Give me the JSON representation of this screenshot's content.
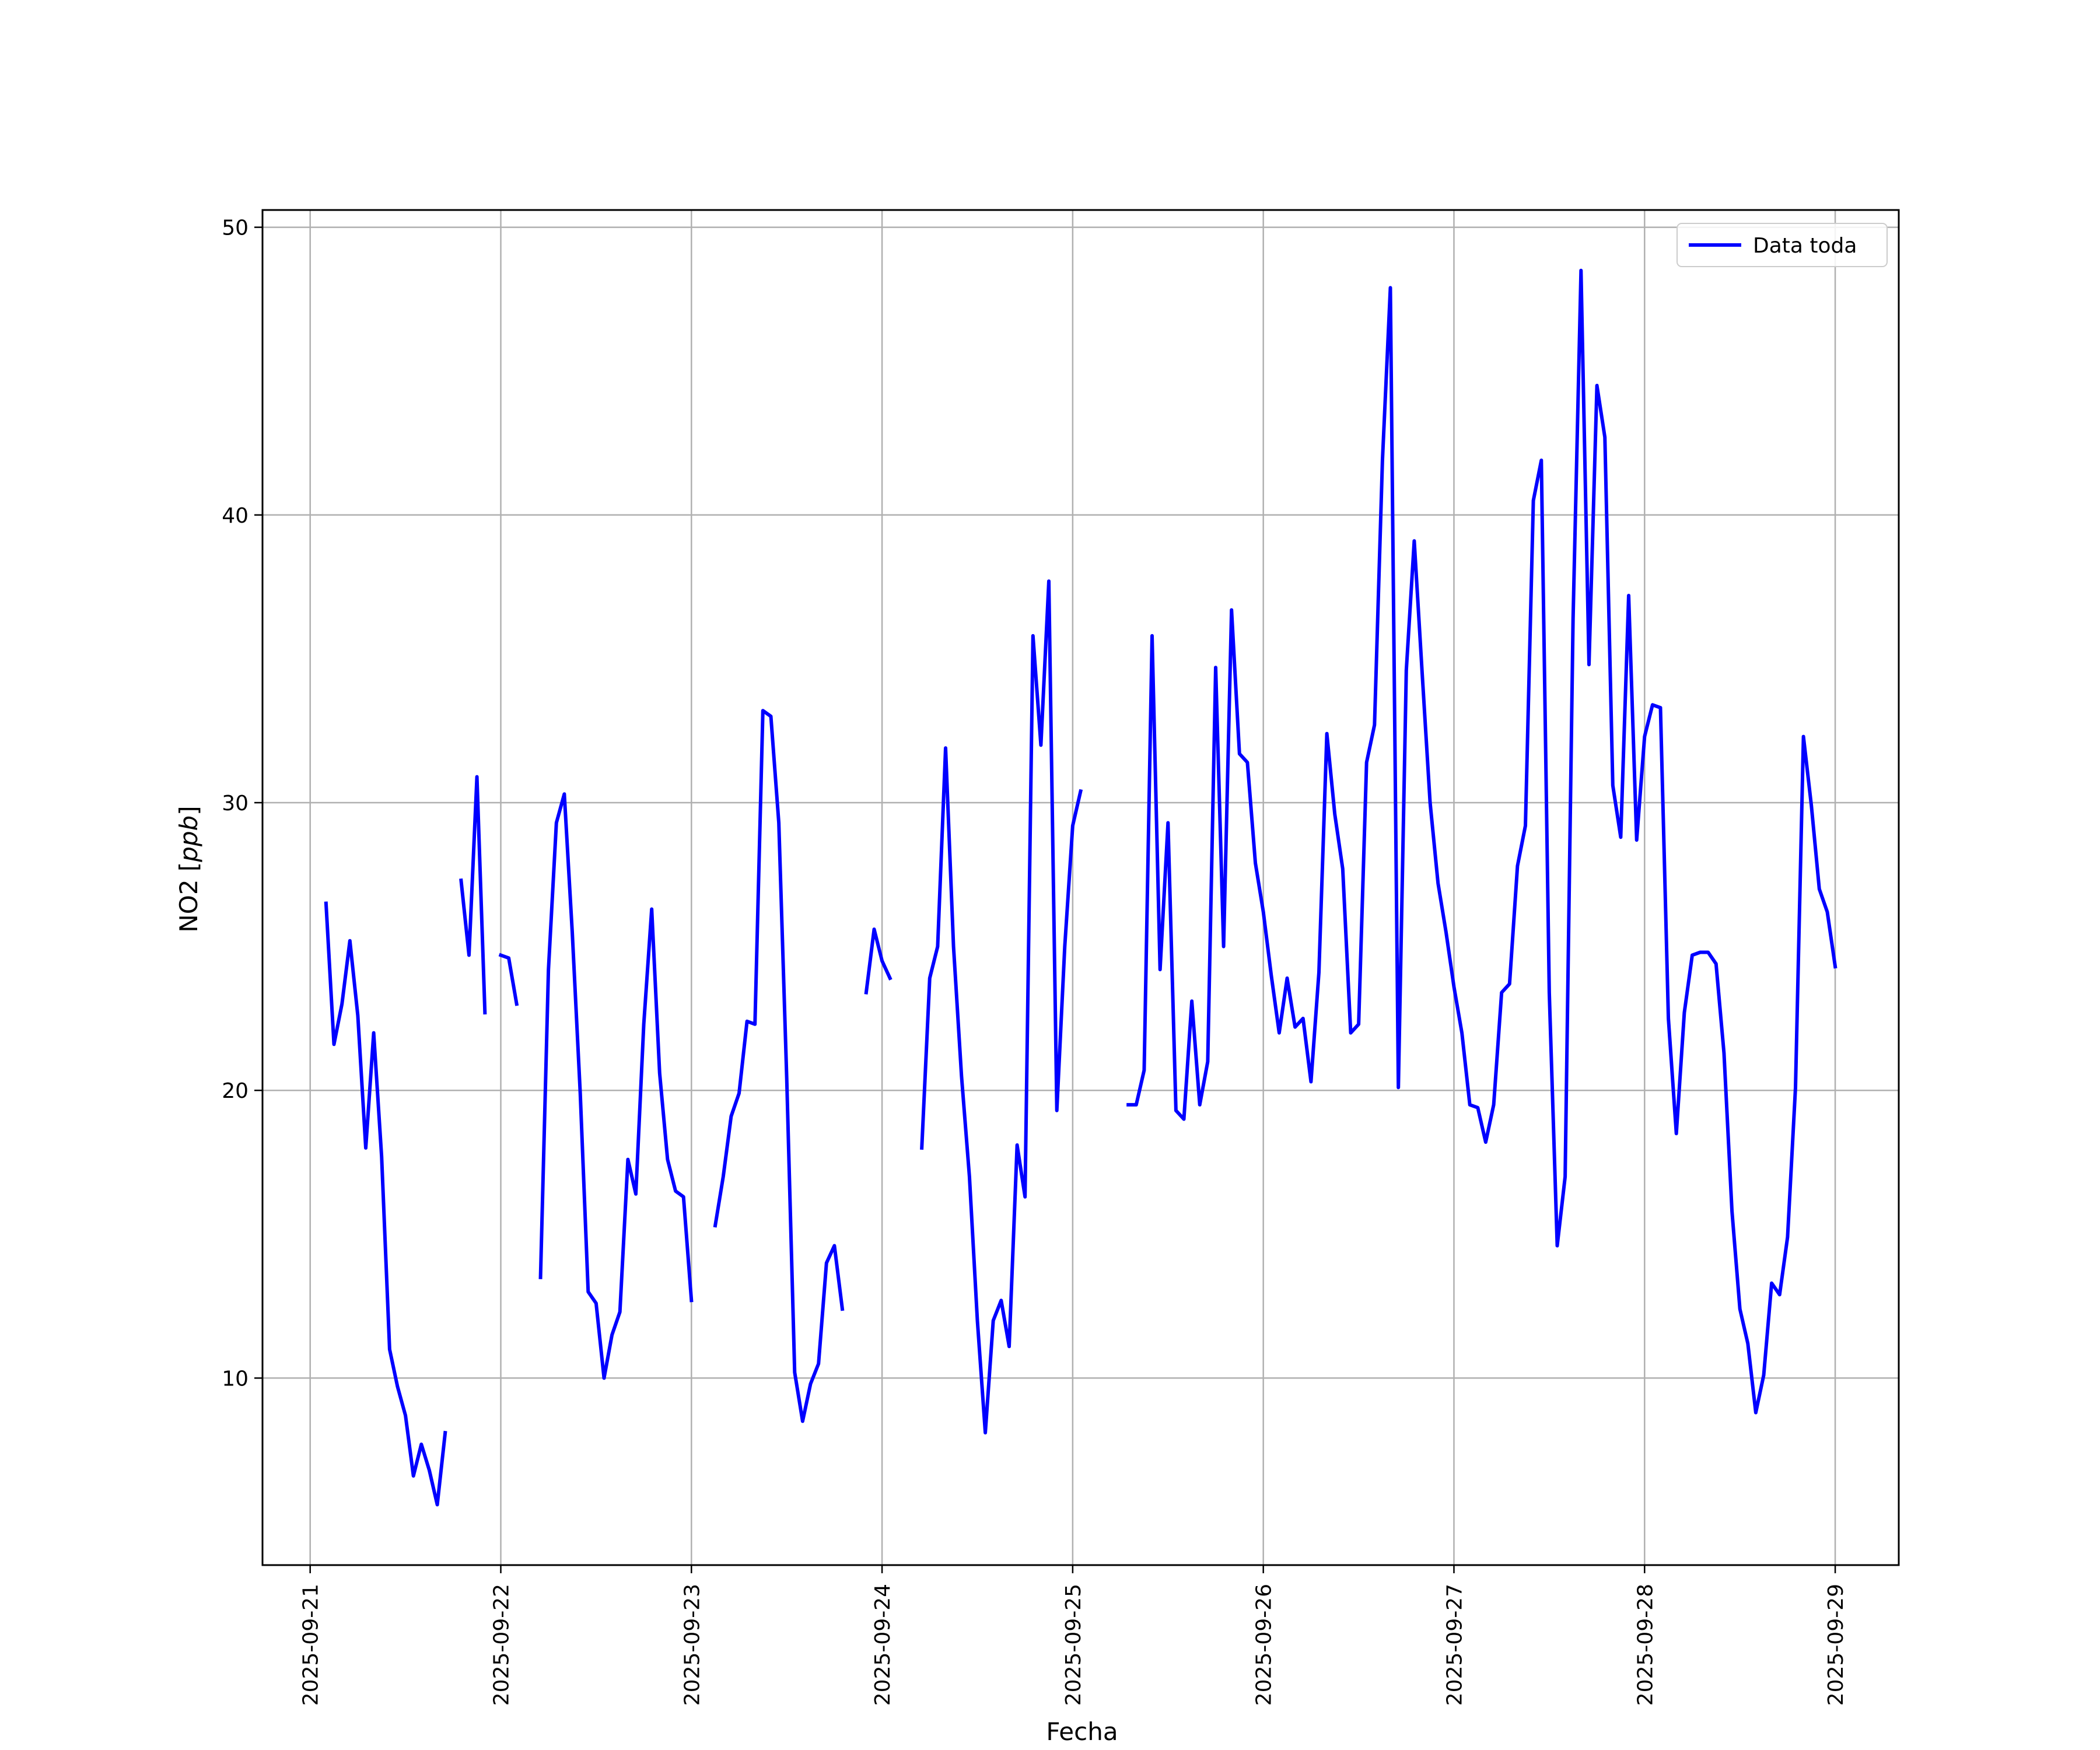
{
  "chart_data": {
    "type": "line",
    "title": "",
    "xlabel": "Fecha",
    "ylabel": "NO2 [ppb]",
    "ylabel_base": "NO2 [",
    "ylabel_unit": "ppb",
    "ylabel_close": "]",
    "xlim": [
      "2025-09-20T18:00",
      "2025-09-29T08:00"
    ],
    "ylim": [
      3.5,
      50.6
    ],
    "xticks": [
      "2025-09-21",
      "2025-09-22",
      "2025-09-23",
      "2025-09-24",
      "2025-09-25",
      "2025-09-26",
      "2025-09-27",
      "2025-09-28",
      "2025-09-29"
    ],
    "yticks": [
      10,
      20,
      30,
      40,
      50
    ],
    "grid": true,
    "legend_position": "top-right",
    "colors": {
      "series": "#0000ff",
      "grid": "#b0b0b0",
      "frame": "#000000"
    },
    "series": [
      {
        "name": "Data toda",
        "segments": [
          [
            [
              "2025-09-21T02:00",
              26.5
            ],
            [
              "2025-09-21T03:00",
              21.6
            ],
            [
              "2025-09-21T04:00",
              23.0
            ],
            [
              "2025-09-21T05:00",
              25.2
            ],
            [
              "2025-09-21T06:00",
              22.6
            ],
            [
              "2025-09-21T07:00",
              18.0
            ],
            [
              "2025-09-21T08:00",
              22.0
            ],
            [
              "2025-09-21T09:00",
              17.7
            ],
            [
              "2025-09-21T10:00",
              11.0
            ],
            [
              "2025-09-21T11:00",
              9.7
            ],
            [
              "2025-09-21T12:00",
              8.7
            ],
            [
              "2025-09-21T13:00",
              6.6
            ],
            [
              "2025-09-21T14:00",
              7.7
            ],
            [
              "2025-09-21T15:00",
              6.8
            ],
            [
              "2025-09-21T16:00",
              5.6
            ],
            [
              "2025-09-21T17:00",
              8.1
            ]
          ],
          [
            [
              "2025-09-21T19:00",
              27.3
            ],
            [
              "2025-09-21T20:00",
              24.7
            ],
            [
              "2025-09-21T21:00",
              30.9
            ],
            [
              "2025-09-21T22:00",
              22.7
            ]
          ],
          [
            [
              "2025-09-22T00:00",
              24.7
            ],
            [
              "2025-09-22T01:00",
              24.6
            ],
            [
              "2025-09-22T02:00",
              23.0
            ]
          ],
          [
            [
              "2025-09-22T05:00",
              13.5
            ],
            [
              "2025-09-22T06:00",
              24.2
            ],
            [
              "2025-09-22T07:00",
              29.3
            ],
            [
              "2025-09-22T08:00",
              30.3
            ],
            [
              "2025-09-22T09:00",
              25.5
            ],
            [
              "2025-09-22T10:00",
              19.9
            ],
            [
              "2025-09-22T11:00",
              13.0
            ],
            [
              "2025-09-22T12:00",
              12.6
            ],
            [
              "2025-09-22T13:00",
              10.0
            ],
            [
              "2025-09-22T14:00",
              11.5
            ],
            [
              "2025-09-22T15:00",
              12.3
            ],
            [
              "2025-09-22T16:00",
              17.6
            ],
            [
              "2025-09-22T17:00",
              16.4
            ],
            [
              "2025-09-22T18:00",
              22.3
            ],
            [
              "2025-09-22T19:00",
              26.3
            ],
            [
              "2025-09-22T20:00",
              20.6
            ],
            [
              "2025-09-22T21:00",
              17.6
            ],
            [
              "2025-09-22T22:00",
              16.5
            ],
            [
              "2025-09-22T23:00",
              16.3
            ],
            [
              "2025-09-23T00:00",
              12.7
            ]
          ],
          [
            [
              "2025-09-23T03:00",
              15.3
            ],
            [
              "2025-09-23T04:00",
              17.0
            ],
            [
              "2025-09-23T05:00",
              19.1
            ],
            [
              "2025-09-23T06:00",
              19.9
            ],
            [
              "2025-09-23T07:00",
              22.4
            ],
            [
              "2025-09-23T08:00",
              22.3
            ],
            [
              "2025-09-23T09:00",
              33.2
            ],
            [
              "2025-09-23T10:00",
              33.0
            ],
            [
              "2025-09-23T11:00",
              29.3
            ],
            [
              "2025-09-23T12:00",
              20.4
            ],
            [
              "2025-09-23T13:00",
              10.2
            ],
            [
              "2025-09-23T14:00",
              8.5
            ],
            [
              "2025-09-23T15:00",
              9.8
            ],
            [
              "2025-09-23T16:00",
              10.5
            ],
            [
              "2025-09-23T17:00",
              14.0
            ],
            [
              "2025-09-23T18:00",
              14.6
            ],
            [
              "2025-09-23T19:00",
              12.4
            ]
          ],
          [
            [
              "2025-09-23T22:00",
              23.4
            ],
            [
              "2025-09-23T23:00",
              25.6
            ],
            [
              "2025-09-24T00:00",
              24.5
            ],
            [
              "2025-09-24T01:00",
              23.9
            ]
          ],
          [
            [
              "2025-09-24T05:00",
              18.0
            ],
            [
              "2025-09-24T06:00",
              23.9
            ],
            [
              "2025-09-24T07:00",
              25.0
            ],
            [
              "2025-09-24T08:00",
              31.9
            ],
            [
              "2025-09-24T09:00",
              25.0
            ],
            [
              "2025-09-24T10:00",
              20.5
            ],
            [
              "2025-09-24T11:00",
              17.0
            ],
            [
              "2025-09-24T12:00",
              12.0
            ],
            [
              "2025-09-24T13:00",
              8.1
            ],
            [
              "2025-09-24T14:00",
              12.0
            ],
            [
              "2025-09-24T15:00",
              12.7
            ],
            [
              "2025-09-24T16:00",
              11.1
            ],
            [
              "2025-09-24T17:00",
              18.1
            ],
            [
              "2025-09-24T18:00",
              16.3
            ],
            [
              "2025-09-24T19:00",
              35.8
            ],
            [
              "2025-09-24T20:00",
              32.0
            ],
            [
              "2025-09-24T21:00",
              37.7
            ],
            [
              "2025-09-24T22:00",
              19.3
            ],
            [
              "2025-09-24T23:00",
              25.0
            ],
            [
              "2025-09-25T00:00",
              29.2
            ],
            [
              "2025-09-25T01:00",
              30.4
            ]
          ],
          [
            [
              "2025-09-25T07:00",
              19.5
            ],
            [
              "2025-09-25T08:00",
              19.5
            ],
            [
              "2025-09-25T09:00",
              20.7
            ],
            [
              "2025-09-25T10:00",
              35.8
            ],
            [
              "2025-09-25T11:00",
              24.2
            ],
            [
              "2025-09-25T12:00",
              29.3
            ],
            [
              "2025-09-25T13:00",
              19.3
            ],
            [
              "2025-09-25T14:00",
              19.0
            ],
            [
              "2025-09-25T15:00",
              23.1
            ],
            [
              "2025-09-25T16:00",
              19.5
            ],
            [
              "2025-09-25T17:00",
              21.0
            ],
            [
              "2025-09-25T18:00",
              34.7
            ],
            [
              "2025-09-25T19:00",
              25.0
            ],
            [
              "2025-09-25T20:00",
              36.7
            ],
            [
              "2025-09-25T21:00",
              31.7
            ],
            [
              "2025-09-25T22:00",
              31.4
            ],
            [
              "2025-09-25T23:00",
              27.9
            ],
            [
              "2025-09-26T00:00",
              26.2
            ],
            [
              "2025-09-26T01:00",
              24.0
            ],
            [
              "2025-09-26T02:00",
              22.0
            ],
            [
              "2025-09-26T03:00",
              23.9
            ],
            [
              "2025-09-26T04:00",
              22.2
            ],
            [
              "2025-09-26T05:00",
              22.5
            ],
            [
              "2025-09-26T06:00",
              20.3
            ],
            [
              "2025-09-26T07:00",
              24.1
            ],
            [
              "2025-09-26T08:00",
              32.4
            ],
            [
              "2025-09-26T09:00",
              29.6
            ],
            [
              "2025-09-26T10:00",
              27.7
            ],
            [
              "2025-09-26T11:00",
              22.0
            ],
            [
              "2025-09-26T12:00",
              22.3
            ],
            [
              "2025-09-26T13:00",
              31.4
            ],
            [
              "2025-09-26T14:00",
              32.7
            ],
            [
              "2025-09-26T15:00",
              41.9
            ],
            [
              "2025-09-26T16:00",
              47.9
            ],
            [
              "2025-09-26T17:00",
              20.1
            ],
            [
              "2025-09-26T18:00",
              34.6
            ],
            [
              "2025-09-26T19:00",
              39.1
            ],
            [
              "2025-09-26T20:00",
              34.5
            ],
            [
              "2025-09-26T21:00",
              30.0
            ],
            [
              "2025-09-26T22:00",
              27.2
            ],
            [
              "2025-09-26T23:00",
              25.5
            ],
            [
              "2025-09-27T00:00",
              23.6
            ],
            [
              "2025-09-27T01:00",
              22.0
            ],
            [
              "2025-09-27T02:00",
              19.5
            ],
            [
              "2025-09-27T03:00",
              19.4
            ],
            [
              "2025-09-27T04:00",
              18.2
            ],
            [
              "2025-09-27T05:00",
              19.5
            ],
            [
              "2025-09-27T06:00",
              23.4
            ],
            [
              "2025-09-27T07:00",
              23.7
            ],
            [
              "2025-09-27T08:00",
              27.8
            ],
            [
              "2025-09-27T09:00",
              29.2
            ],
            [
              "2025-09-27T10:00",
              40.5
            ],
            [
              "2025-09-27T11:00",
              41.9
            ],
            [
              "2025-09-27T12:00",
              23.4
            ],
            [
              "2025-09-27T13:00",
              14.6
            ],
            [
              "2025-09-27T14:00",
              17.0
            ],
            [
              "2025-09-27T15:00",
              36.4
            ],
            [
              "2025-09-27T16:00",
              48.5
            ],
            [
              "2025-09-27T17:00",
              34.8
            ],
            [
              "2025-09-27T18:00",
              44.5
            ],
            [
              "2025-09-27T19:00",
              42.7
            ],
            [
              "2025-09-27T20:00",
              30.6
            ],
            [
              "2025-09-27T21:00",
              28.8
            ],
            [
              "2025-09-27T22:00",
              37.2
            ],
            [
              "2025-09-27T23:00",
              28.7
            ],
            [
              "2025-09-28T00:00",
              32.3
            ],
            [
              "2025-09-28T01:00",
              33.4
            ],
            [
              "2025-09-28T02:00",
              33.3
            ],
            [
              "2025-09-28T03:00",
              22.5
            ],
            [
              "2025-09-28T04:00",
              18.5
            ],
            [
              "2025-09-28T05:00",
              22.7
            ],
            [
              "2025-09-28T06:00",
              24.7
            ],
            [
              "2025-09-28T07:00",
              24.8
            ],
            [
              "2025-09-28T08:00",
              24.8
            ],
            [
              "2025-09-28T09:00",
              24.4
            ],
            [
              "2025-09-28T10:00",
              21.3
            ],
            [
              "2025-09-28T11:00",
              15.8
            ],
            [
              "2025-09-28T12:00",
              12.4
            ],
            [
              "2025-09-28T13:00",
              11.2
            ],
            [
              "2025-09-28T14:00",
              8.8
            ],
            [
              "2025-09-28T15:00",
              10.1
            ],
            [
              "2025-09-28T16:00",
              13.3
            ],
            [
              "2025-09-28T17:00",
              12.9
            ],
            [
              "2025-09-28T18:00",
              14.9
            ],
            [
              "2025-09-28T19:00",
              20.1
            ],
            [
              "2025-09-28T20:00",
              32.3
            ],
            [
              "2025-09-28T21:00",
              29.9
            ],
            [
              "2025-09-28T22:00",
              27.0
            ],
            [
              "2025-09-28T23:00",
              26.2
            ],
            [
              "2025-09-29T00:00",
              24.3
            ]
          ]
        ]
      }
    ]
  }
}
